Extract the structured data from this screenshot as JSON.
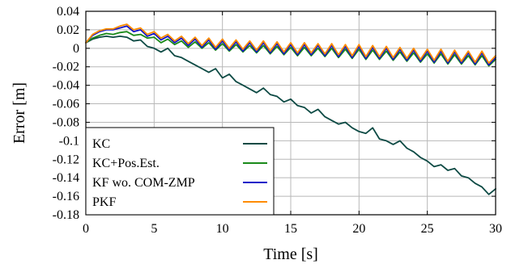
{
  "chart_data": {
    "type": "line",
    "title": "",
    "xlabel": "Time [s]",
    "ylabel": "Error [m]",
    "xlim": [
      0,
      30
    ],
    "ylim": [
      -0.18,
      0.04
    ],
    "xticks": [
      0,
      5,
      10,
      15,
      20,
      25,
      30
    ],
    "xtick_labels": [
      "0",
      "5",
      "10",
      "15",
      "20",
      "25",
      "30"
    ],
    "yticks": [
      0.04,
      0.02,
      0,
      -0.02,
      -0.04,
      -0.06,
      -0.08,
      -0.1,
      -0.12,
      -0.14,
      -0.16,
      -0.18
    ],
    "ytick_labels": [
      "0.04",
      "0.02",
      "0",
      "-0.02",
      "-0.04",
      "-0.06",
      "-0.08",
      "-0.1",
      "-0.12",
      "-0.14",
      "-0.16",
      "-0.18"
    ],
    "grid": true,
    "legend_position": "bottom-left",
    "series": [
      {
        "name": "KC",
        "color": "#0d4a44",
        "x": [
          0,
          0.5,
          1,
          1.5,
          2,
          2.5,
          3,
          3.5,
          4,
          4.5,
          5,
          5.5,
          6,
          6.5,
          7,
          7.5,
          8,
          8.5,
          9,
          9.5,
          10,
          10.5,
          11,
          11.5,
          12,
          12.5,
          13,
          13.5,
          14,
          14.5,
          15,
          15.5,
          16,
          16.5,
          17,
          17.5,
          18,
          18.5,
          19,
          19.5,
          20,
          20.5,
          21,
          21.5,
          22,
          22.5,
          23,
          23.5,
          24,
          24.5,
          25,
          25.5,
          26,
          26.5,
          27,
          27.5,
          28,
          28.5,
          29,
          29.5,
          30
        ],
        "y": [
          0.006,
          0.01,
          0.012,
          0.013,
          0.012,
          0.013,
          0.012,
          0.008,
          0.009,
          0.002,
          0.0,
          -0.004,
          0.0,
          -0.008,
          -0.01,
          -0.014,
          -0.018,
          -0.022,
          -0.026,
          -0.022,
          -0.032,
          -0.028,
          -0.036,
          -0.04,
          -0.044,
          -0.048,
          -0.043,
          -0.05,
          -0.052,
          -0.058,
          -0.055,
          -0.062,
          -0.064,
          -0.07,
          -0.066,
          -0.074,
          -0.078,
          -0.082,
          -0.08,
          -0.086,
          -0.09,
          -0.092,
          -0.086,
          -0.098,
          -0.1,
          -0.104,
          -0.1,
          -0.108,
          -0.112,
          -0.118,
          -0.122,
          -0.128,
          -0.126,
          -0.132,
          -0.13,
          -0.138,
          -0.14,
          -0.146,
          -0.15,
          -0.158,
          -0.152
        ]
      },
      {
        "name": "KC+Pos.Est.",
        "color": "#1a8a1a",
        "x": [
          0,
          0.5,
          1,
          1.5,
          2,
          2.5,
          3,
          3.5,
          4,
          4.5,
          5,
          5.5,
          6,
          6.5,
          7,
          7.5,
          8,
          8.5,
          9,
          9.5,
          10,
          10.5,
          11,
          11.5,
          12,
          12.5,
          13,
          13.5,
          14,
          14.5,
          15,
          15.5,
          16,
          16.5,
          17,
          17.5,
          18,
          18.5,
          19,
          19.5,
          20,
          20.5,
          21,
          21.5,
          22,
          22.5,
          23,
          23.5,
          24,
          24.5,
          25,
          25.5,
          26,
          26.5,
          27,
          27.5,
          28,
          28.5,
          29,
          29.5,
          30
        ],
        "y": [
          0.006,
          0.011,
          0.014,
          0.016,
          0.015,
          0.017,
          0.018,
          0.014,
          0.015,
          0.011,
          0.012,
          0.006,
          0.01,
          0.004,
          0.008,
          0.001,
          0.007,
          0.0,
          0.006,
          -0.002,
          0.005,
          -0.003,
          0.004,
          -0.004,
          0.003,
          -0.005,
          0.003,
          -0.006,
          0.002,
          -0.007,
          0.001,
          -0.008,
          0.001,
          -0.008,
          0.0,
          -0.009,
          0.0,
          -0.01,
          -0.001,
          -0.011,
          -0.001,
          -0.012,
          -0.002,
          -0.012,
          -0.003,
          -0.013,
          -0.004,
          -0.014,
          -0.005,
          -0.015,
          -0.006,
          -0.016,
          -0.006,
          -0.017,
          -0.007,
          -0.017,
          -0.008,
          -0.018,
          -0.008,
          -0.019,
          -0.012
        ]
      },
      {
        "name": "KF wo. COM-ZMP",
        "color": "#1414c8",
        "x": [
          0,
          0.5,
          1,
          1.5,
          2,
          2.5,
          3,
          3.5,
          4,
          4.5,
          5,
          5.5,
          6,
          6.5,
          7,
          7.5,
          8,
          8.5,
          9,
          9.5,
          10,
          10.5,
          11,
          11.5,
          12,
          12.5,
          13,
          13.5,
          14,
          14.5,
          15,
          15.5,
          16,
          16.5,
          17,
          17.5,
          18,
          18.5,
          19,
          19.5,
          20,
          20.5,
          21,
          21.5,
          22,
          22.5,
          23,
          23.5,
          24,
          24.5,
          25,
          25.5,
          26,
          26.5,
          27,
          27.5,
          28,
          28.5,
          29,
          29.5,
          30
        ],
        "y": [
          0.006,
          0.014,
          0.018,
          0.02,
          0.02,
          0.022,
          0.024,
          0.018,
          0.02,
          0.013,
          0.016,
          0.009,
          0.013,
          0.006,
          0.011,
          0.003,
          0.01,
          0.001,
          0.009,
          -0.001,
          0.008,
          -0.002,
          0.007,
          -0.003,
          0.006,
          -0.004,
          0.006,
          -0.005,
          0.005,
          -0.006,
          0.004,
          -0.007,
          0.004,
          -0.007,
          0.003,
          -0.008,
          0.003,
          -0.009,
          0.002,
          -0.01,
          0.002,
          -0.011,
          0.001,
          -0.011,
          0.0,
          -0.012,
          -0.001,
          -0.013,
          -0.002,
          -0.014,
          -0.003,
          -0.015,
          -0.003,
          -0.016,
          -0.004,
          -0.016,
          -0.005,
          -0.017,
          -0.005,
          -0.018,
          -0.01
        ]
      },
      {
        "name": "PKF",
        "color": "#ff8c00",
        "x": [
          0,
          0.5,
          1,
          1.5,
          2,
          2.5,
          3,
          3.5,
          4,
          4.5,
          5,
          5.5,
          6,
          6.5,
          7,
          7.5,
          8,
          8.5,
          9,
          9.5,
          10,
          10.5,
          11,
          11.5,
          12,
          12.5,
          13,
          13.5,
          14,
          14.5,
          15,
          15.5,
          16,
          16.5,
          17,
          17.5,
          18,
          18.5,
          19,
          19.5,
          20,
          20.5,
          21,
          21.5,
          22,
          22.5,
          23,
          23.5,
          24,
          24.5,
          25,
          25.5,
          26,
          26.5,
          27,
          27.5,
          28,
          28.5,
          29,
          29.5,
          30
        ],
        "y": [
          0.006,
          0.015,
          0.019,
          0.021,
          0.021,
          0.024,
          0.026,
          0.02,
          0.022,
          0.015,
          0.018,
          0.011,
          0.015,
          0.008,
          0.013,
          0.005,
          0.012,
          0.003,
          0.011,
          0.001,
          0.01,
          0.0,
          0.009,
          -0.001,
          0.008,
          -0.002,
          0.008,
          -0.003,
          0.007,
          -0.004,
          0.006,
          -0.005,
          0.006,
          -0.005,
          0.005,
          -0.006,
          0.005,
          -0.007,
          0.004,
          -0.008,
          0.004,
          -0.009,
          0.003,
          -0.009,
          0.002,
          -0.01,
          0.001,
          -0.011,
          0.0,
          -0.012,
          -0.001,
          -0.013,
          -0.001,
          -0.014,
          -0.002,
          -0.014,
          -0.003,
          -0.015,
          -0.003,
          -0.016,
          -0.008
        ]
      }
    ]
  }
}
